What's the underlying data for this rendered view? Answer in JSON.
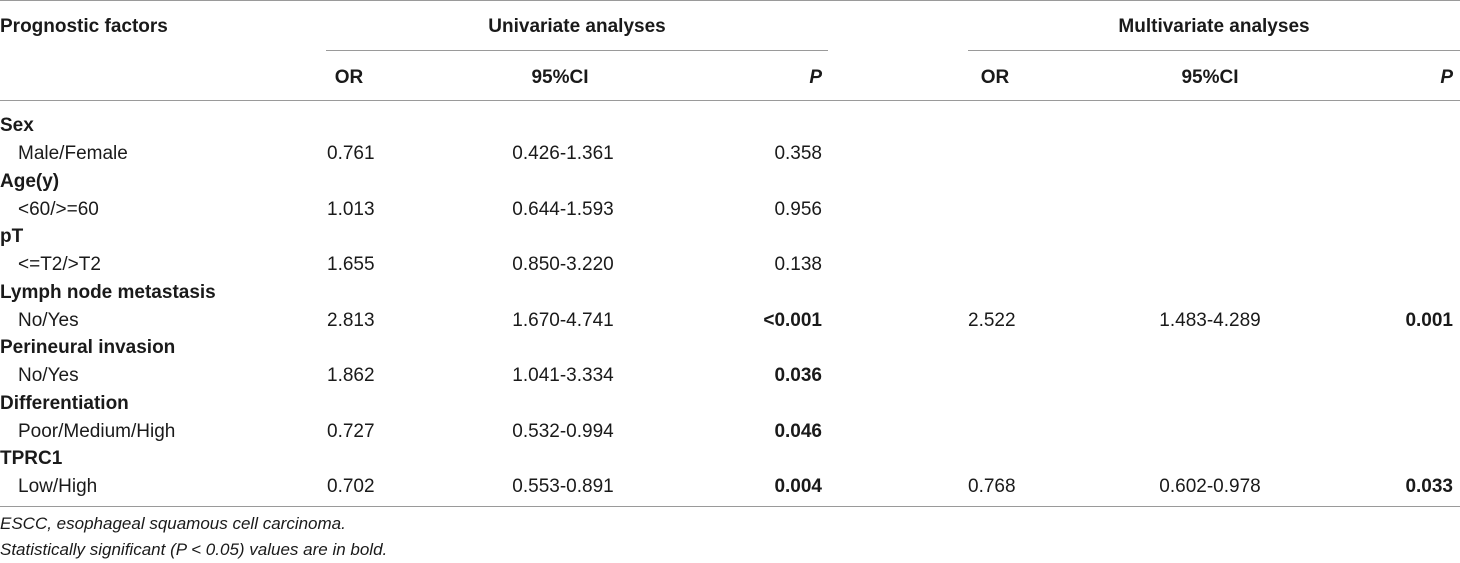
{
  "header": {
    "factor_label": "Prognostic factors",
    "univariate_label": "Univariate analyses",
    "multivariate_label": "Multivariate analyses",
    "uni_or": "OR",
    "uni_ci": "95%CI",
    "uni_p": "P",
    "multi_or": "OR",
    "multi_ci": "95%CI",
    "multi_p": "P"
  },
  "rows": [
    {
      "factor": "Sex",
      "level": "Male/Female",
      "uni_or": "0.761",
      "uni_ci": "0.426-1.361",
      "uni_p": "0.358",
      "uni_p_bold": false,
      "multi_or": "",
      "multi_ci": "",
      "multi_p": ""
    },
    {
      "factor": "Age(y)",
      "level": "<60/>=60",
      "uni_or": "1.013",
      "uni_ci": "0.644-1.593",
      "uni_p": "0.956",
      "uni_p_bold": false,
      "multi_or": "",
      "multi_ci": "",
      "multi_p": ""
    },
    {
      "factor": "pT",
      "level": "<=T2/>T2",
      "uni_or": "1.655",
      "uni_ci": "0.850-3.220",
      "uni_p": "0.138",
      "uni_p_bold": false,
      "multi_or": "",
      "multi_ci": "",
      "multi_p": ""
    },
    {
      "factor": "Lymph node metastasis",
      "level": "No/Yes",
      "uni_or": "2.813",
      "uni_ci": "1.670-4.741",
      "uni_p": "<0.001",
      "uni_p_bold": true,
      "multi_or": "2.522",
      "multi_ci": "1.483-4.289",
      "multi_p": "0.001"
    },
    {
      "factor": "Perineural invasion",
      "level": "No/Yes",
      "uni_or": "1.862",
      "uni_ci": "1.041-3.334",
      "uni_p": "0.036",
      "uni_p_bold": true,
      "multi_or": "",
      "multi_ci": "",
      "multi_p": ""
    },
    {
      "factor": "Differentiation",
      "level": "Poor/Medium/High",
      "uni_or": "0.727",
      "uni_ci": "0.532-0.994",
      "uni_p": "0.046",
      "uni_p_bold": true,
      "multi_or": "",
      "multi_ci": "",
      "multi_p": ""
    },
    {
      "factor": "TPRC1",
      "level": "Low/High",
      "uni_or": "0.702",
      "uni_ci": "0.553-0.891",
      "uni_p": "0.004",
      "uni_p_bold": true,
      "multi_or": "0.768",
      "multi_ci": "0.602-0.978",
      "multi_p": "0.033"
    }
  ],
  "footnotes": [
    "ESCC, esophageal squamous cell carcinoma.",
    "Statistically significant (P < 0.05) values are in bold."
  ]
}
